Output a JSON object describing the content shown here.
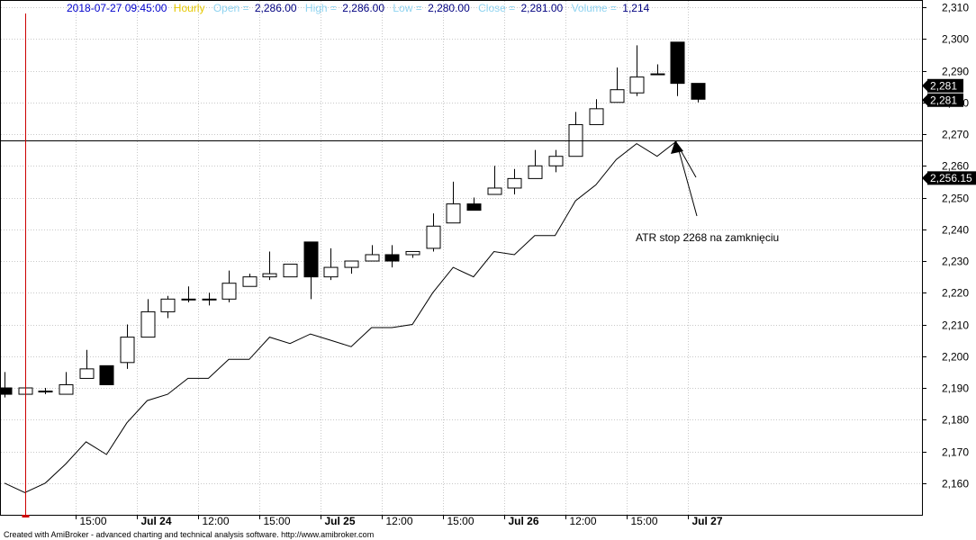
{
  "header": {
    "datetime": "2018-07-27 09:45:00",
    "interval": "Hourly",
    "open_label": "Open =",
    "open_value": "2,286.00",
    "high_label": "High =",
    "high_value": "2,286.00",
    "low_label": "Low =",
    "low_value": "2,280.00",
    "close_label": "Close =",
    "close_value": "2,281.00",
    "volume_label": "Volume =",
    "volume_value": "1,214"
  },
  "footer": "Created with AmiBroker - advanced charting and technical analysis software. http://www.amibroker.com",
  "colors": {
    "header_datetime": "#0000cc",
    "header_interval": "#e6c800",
    "header_label": "#8fd3f0",
    "header_value": "#000080",
    "cursor_line": "#cc0000",
    "grid": "#c8c8c8"
  },
  "chart_data": {
    "type": "candlestick",
    "ylim": [
      2150,
      2312
    ],
    "y_ticks": [
      2160,
      2170,
      2180,
      2190,
      2200,
      2210,
      2220,
      2230,
      2240,
      2250,
      2260,
      2270,
      2280,
      2290,
      2300,
      2310
    ],
    "y_tick_labels": [
      "2,160",
      "2,170",
      "2,180",
      "2,190",
      "2,200",
      "2,210",
      "2,220",
      "2,230",
      "2,240",
      "2,250",
      "2,260",
      "2,270",
      "2,280",
      "2,290",
      "2,300",
      "2,310"
    ],
    "x_ticks": [
      {
        "index": 3.5,
        "label": "15:00",
        "bold": false
      },
      {
        "index": 6.5,
        "label": "Jul 24",
        "bold": true
      },
      {
        "index": 9.5,
        "label": "12:00",
        "bold": false
      },
      {
        "index": 12.5,
        "label": "15:00",
        "bold": false
      },
      {
        "index": 15.5,
        "label": "Jul 25",
        "bold": true
      },
      {
        "index": 18.5,
        "label": "12:00",
        "bold": false
      },
      {
        "index": 21.5,
        "label": "15:00",
        "bold": false
      },
      {
        "index": 24.5,
        "label": "Jul 26",
        "bold": true
      },
      {
        "index": 27.5,
        "label": "12:00",
        "bold": false
      },
      {
        "index": 30.5,
        "label": "15:00",
        "bold": false
      },
      {
        "index": 33.5,
        "label": "Jul 27",
        "bold": true
      }
    ],
    "candles": [
      {
        "o": 2190,
        "h": 2195,
        "l": 2187,
        "c": 2188
      },
      {
        "o": 2188,
        "h": 2191,
        "l": 2187,
        "c": 2190
      },
      {
        "o": 2189,
        "h": 2190,
        "l": 2188,
        "c": 2189
      },
      {
        "o": 2188,
        "h": 2195,
        "l": 2188,
        "c": 2191
      },
      {
        "o": 2193,
        "h": 2202,
        "l": 2193,
        "c": 2196
      },
      {
        "o": 2197,
        "h": 2197,
        "l": 2191,
        "c": 2191
      },
      {
        "o": 2198,
        "h": 2210,
        "l": 2196,
        "c": 2206
      },
      {
        "o": 2206,
        "h": 2218,
        "l": 2206,
        "c": 2214
      },
      {
        "o": 2214,
        "h": 2219,
        "l": 2212,
        "c": 2218
      },
      {
        "o": 2218,
        "h": 2222,
        "l": 2217,
        "c": 2218
      },
      {
        "o": 2218,
        "h": 2220,
        "l": 2216,
        "c": 2218
      },
      {
        "o": 2218,
        "h": 2227,
        "l": 2217,
        "c": 2223
      },
      {
        "o": 2222,
        "h": 2226,
        "l": 2222,
        "c": 2225
      },
      {
        "o": 2225,
        "h": 2233,
        "l": 2224,
        "c": 2226
      },
      {
        "o": 2225,
        "h": 2229,
        "l": 2225,
        "c": 2229
      },
      {
        "o": 2236,
        "h": 2236,
        "l": 2218,
        "c": 2225
      },
      {
        "o": 2225,
        "h": 2234,
        "l": 2224,
        "c": 2228
      },
      {
        "o": 2228,
        "h": 2230,
        "l": 2226,
        "c": 2230
      },
      {
        "o": 2230,
        "h": 2235,
        "l": 2230,
        "c": 2232
      },
      {
        "o": 2232,
        "h": 2235,
        "l": 2228,
        "c": 2230
      },
      {
        "o": 2232,
        "h": 2233,
        "l": 2231,
        "c": 2233
      },
      {
        "o": 2234,
        "h": 2245,
        "l": 2233,
        "c": 2241
      },
      {
        "o": 2242,
        "h": 2255,
        "l": 2242,
        "c": 2248
      },
      {
        "o": 2248,
        "h": 2250,
        "l": 2246,
        "c": 2246
      },
      {
        "o": 2251,
        "h": 2260,
        "l": 2251,
        "c": 2253
      },
      {
        "o": 2253,
        "h": 2259,
        "l": 2251,
        "c": 2256
      },
      {
        "o": 2256,
        "h": 2265,
        "l": 2256,
        "c": 2260
      },
      {
        "o": 2260,
        "h": 2265,
        "l": 2258,
        "c": 2263
      },
      {
        "o": 2263,
        "h": 2277,
        "l": 2263,
        "c": 2273
      },
      {
        "o": 2273,
        "h": 2281,
        "l": 2273,
        "c": 2278
      },
      {
        "o": 2280,
        "h": 2291,
        "l": 2280,
        "c": 2284
      },
      {
        "o": 2283,
        "h": 2298,
        "l": 2282,
        "c": 2288
      },
      {
        "o": 2289,
        "h": 2292,
        "l": 2289,
        "c": 2289
      },
      {
        "o": 2299,
        "h": 2299,
        "l": 2282,
        "c": 2286
      },
      {
        "o": 2286,
        "h": 2286,
        "l": 2280,
        "c": 2281
      }
    ],
    "atr_stop": [
      2160,
      2157,
      2160,
      2166,
      2173,
      2169,
      2179,
      2186,
      2188,
      2193,
      2193,
      2199,
      2199,
      2206,
      2204,
      2207,
      2205,
      2203,
      2209,
      2209,
      2210,
      2220,
      2228,
      2225,
      2233,
      2232,
      2238,
      2238,
      2249,
      2254,
      2262,
      2267,
      2263,
      2268
    ],
    "horizontal_line": 2268,
    "cursor_index": 1,
    "last_price_labels": [
      "2,281",
      "2,281"
    ],
    "last_price_value": 2281,
    "indicator_label": "2,256.15",
    "indicator_value": 2256.15,
    "annotation_text": "ATR stop 2268 na zamknięciu"
  }
}
